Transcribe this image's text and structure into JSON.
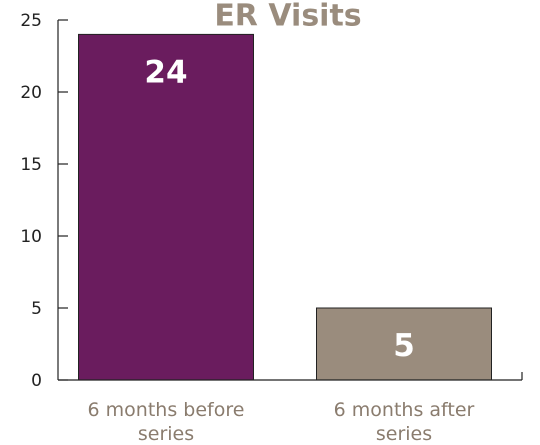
{
  "chart_data": {
    "type": "bar",
    "title": "ER Visits",
    "categories": [
      "6 months before series",
      "6 months after series"
    ],
    "category_lines": [
      [
        "6 months before",
        "series"
      ],
      [
        "6 months after",
        "series"
      ]
    ],
    "values": [
      24,
      5
    ],
    "data_labels": [
      "24",
      "5"
    ],
    "bar_colors": [
      "#6a1c5e",
      "#9a8c7d"
    ],
    "ylim": [
      0,
      25
    ],
    "yticks": [
      0,
      5,
      10,
      15,
      20,
      25
    ],
    "ytick_labels": [
      "0",
      "5",
      "10",
      "15",
      "20",
      "25"
    ],
    "xlabel": "",
    "ylabel": "",
    "grid": false,
    "colors": {
      "title": "#9a8c7d",
      "category_label": "#8a7c6e",
      "axis": "#222222"
    }
  }
}
